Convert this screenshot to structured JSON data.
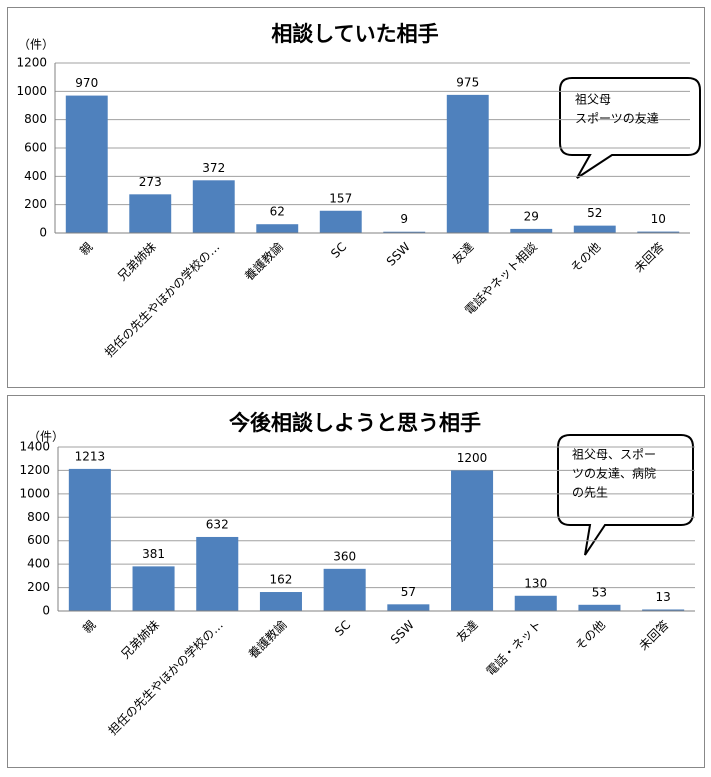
{
  "chart_data": [
    {
      "type": "bar",
      "title": "相談していた相手",
      "y_unit": "（件）",
      "categories": [
        "親",
        "兄弟姉妹",
        "担任の先生やほかの学校の…",
        "養護教諭",
        "SC",
        "SSW",
        "友達",
        "電話やネット相談",
        "その他",
        "未回答"
      ],
      "values": [
        970,
        273,
        372,
        62,
        157,
        9,
        975,
        29,
        52,
        10
      ],
      "color": "#4f81bd",
      "ylim": [
        0,
        1200
      ],
      "yticks": [
        0,
        200,
        400,
        600,
        800,
        1000,
        1200
      ],
      "grid": true,
      "annotation": [
        "祖父母",
        "スポーツの友達"
      ]
    },
    {
      "type": "bar",
      "title": "今後相談しようと思う相手",
      "y_unit": "（件）",
      "categories": [
        "親",
        "兄弟姉妹",
        "担任の先生やほかの学校の…",
        "養護教諭",
        "SC",
        "SSW",
        "友達",
        "電話・ネット",
        "その他",
        "未回答"
      ],
      "values": [
        1213,
        381,
        632,
        162,
        360,
        57,
        1200,
        130,
        53,
        13
      ],
      "color": "#4f81bd",
      "ylim": [
        0,
        1400
      ],
      "yticks": [
        0,
        200,
        400,
        600,
        800,
        1000,
        1200,
        1400
      ],
      "grid": true,
      "annotation": [
        "祖父母、スポー",
        "ツの友達、病院",
        "の先生"
      ]
    }
  ]
}
